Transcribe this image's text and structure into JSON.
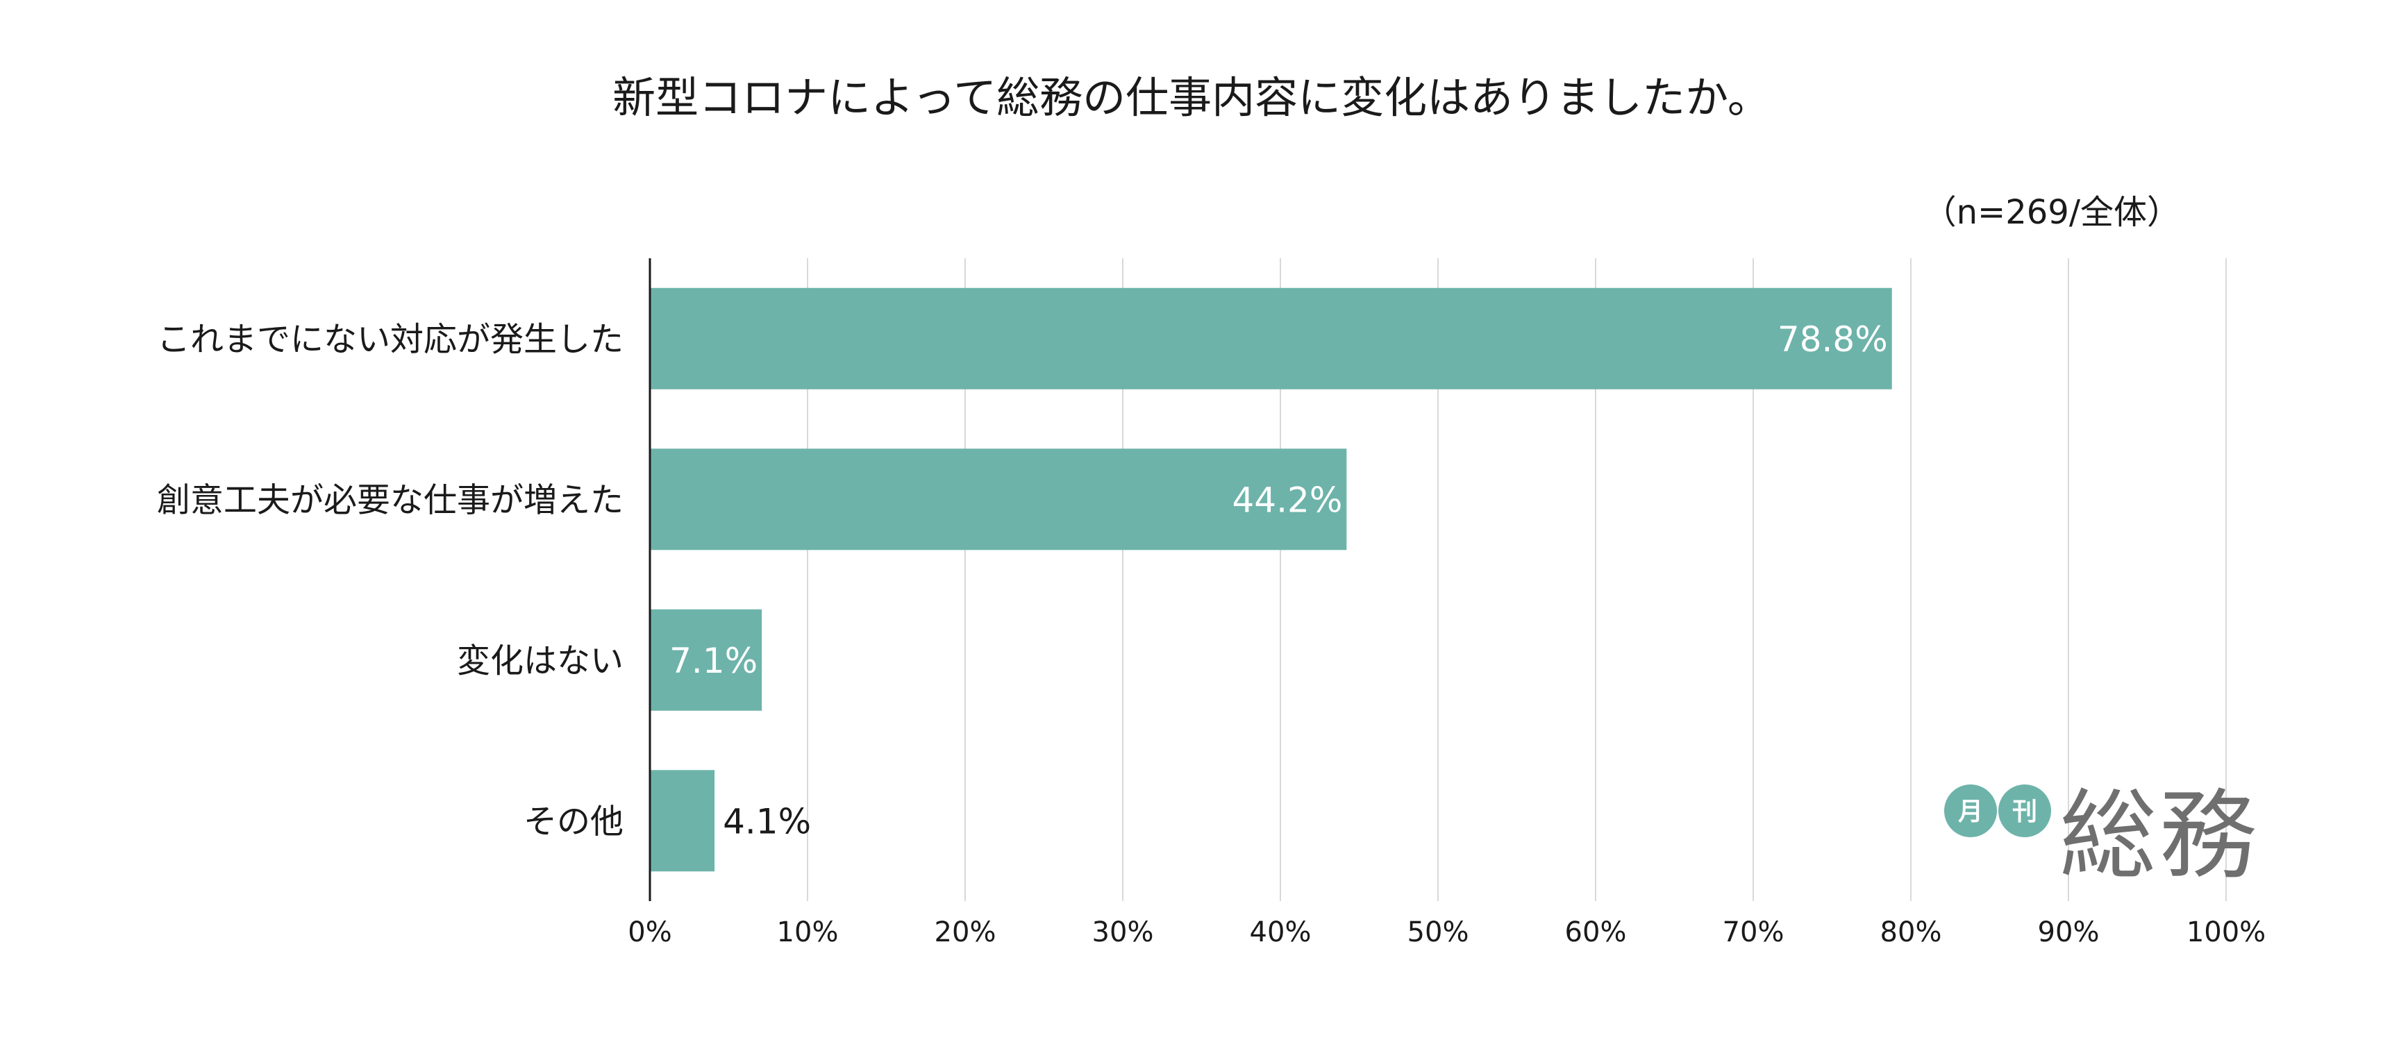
{
  "chart_data": {
    "type": "bar",
    "orientation": "horizontal",
    "title": "新型コロナによって総務の仕事内容に変化はありましたか。",
    "note": "（n=269/全体）",
    "categories": [
      "これまでにない対応が発生した",
      "創意工夫が必要な仕事が増えた",
      "変化はない",
      "その他"
    ],
    "values": [
      78.8,
      44.2,
      7.1,
      4.1
    ],
    "value_labels": [
      "78.8%",
      "44.2%",
      "7.1%",
      "4.1%"
    ],
    "xlim": [
      0,
      100
    ],
    "x_ticks": [
      "0%",
      "10%",
      "20%",
      "30%",
      "40%",
      "50%",
      "60%",
      "70%",
      "80%",
      "90%",
      "100%"
    ],
    "grid": true,
    "bar_color": "#6db3aa"
  },
  "logo": {
    "badge_1": "月",
    "badge_2": "刊",
    "word": "総務",
    "badge_color": "#6db3aa",
    "word_color": "#6f6f6f"
  }
}
